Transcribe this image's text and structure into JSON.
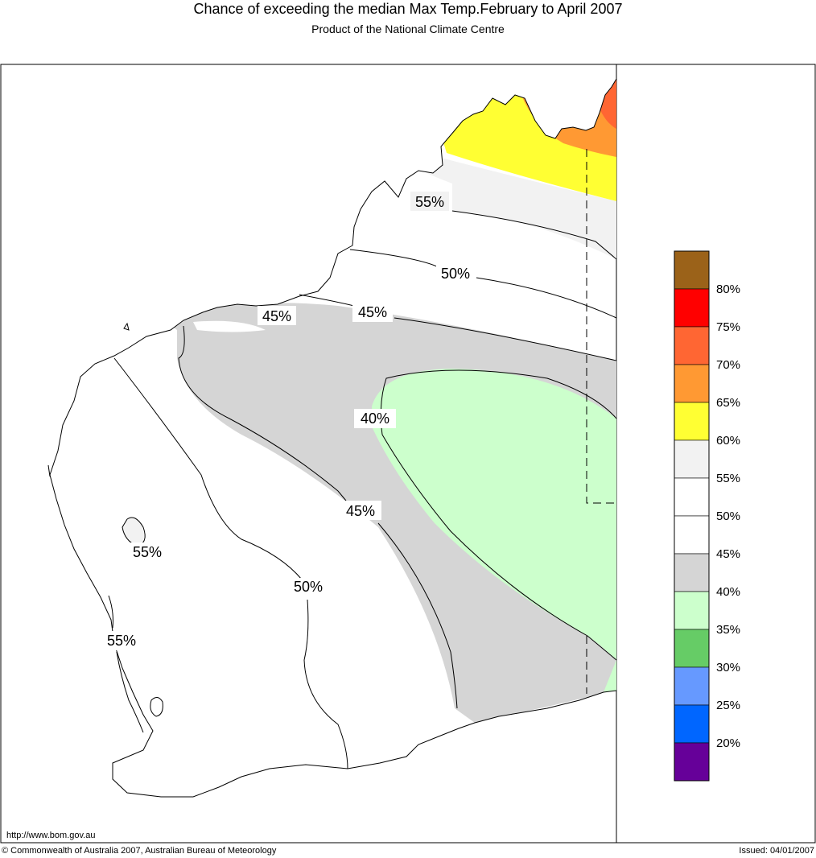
{
  "header": {
    "title": "Chance of exceeding the median Max Temp.February to April 2007",
    "subtitle": "Product of the National Climate Centre"
  },
  "footer": {
    "url": "http://www.bom.gov.au",
    "copyright": "© Commonwealth of Australia 2007, Australian Bureau of Meteorology",
    "issued": "Issued: 04/01/2007"
  },
  "map": {
    "contour_labels": [
      "55%",
      "50%",
      "45%",
      "45%",
      "40%",
      "45%",
      "55%",
      "50%",
      "55%"
    ]
  },
  "legend": {
    "colors": [
      "#9b6219",
      "#ff0000",
      "#ff6633",
      "#ff9933",
      "#ffff33",
      "#f2f2f2",
      "#ffffff",
      "#ffffff",
      "#d5d5d5",
      "#ccffcc",
      "#66cc66",
      "#6699ff",
      "#0066ff",
      "#660099"
    ],
    "labels": [
      "80%",
      "75%",
      "70%",
      "65%",
      "60%",
      "55%",
      "50%",
      "45%",
      "40%",
      "35%",
      "30%",
      "25%",
      "20%"
    ]
  }
}
